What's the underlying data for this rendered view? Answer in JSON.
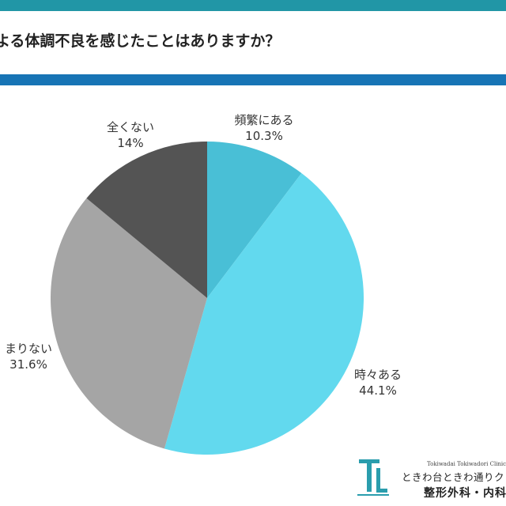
{
  "header": {
    "title": "よる体調不良を感じたことはありますか？",
    "top_bar_color": "#2196a6",
    "bottom_bar_color": "#1774b5"
  },
  "chart_data": {
    "type": "pie",
    "title": "",
    "slices": [
      {
        "label": "頻繁にある",
        "value": 10.3,
        "value_label": "10.3%",
        "color": "#49bfd6"
      },
      {
        "label": "時々ある",
        "value": 44.1,
        "value_label": "44.1%",
        "color": "#62d9ee"
      },
      {
        "label": "まりない",
        "value": 31.6,
        "value_label": "31.6%",
        "color": "#a5a5a5"
      },
      {
        "label": "全くない",
        "value": 14,
        "value_label": "14%",
        "color": "#545454"
      }
    ],
    "start": "top",
    "direction": "clockwise"
  },
  "logo": {
    "english": "Tokiwadai Tokiwadori Clinic",
    "line1": "ときわ台ときわ通りクリニ",
    "line2": "整形外科・内科",
    "mark_color": "#2a9dad",
    "icon": "clinic-logo-mark"
  }
}
